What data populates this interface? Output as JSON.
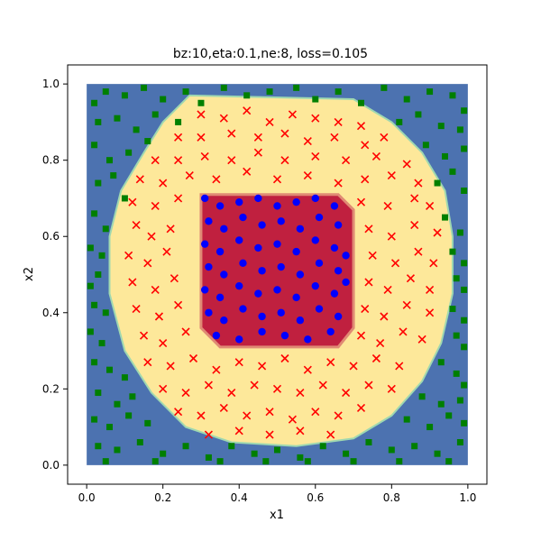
{
  "chart_data": {
    "type": "scatter",
    "title": "bz:10,eta:0.1,ne:8, loss=0.105",
    "xlabel": "x1",
    "ylabel": "x2",
    "xlim": [
      -0.05,
      1.05
    ],
    "ylim": [
      -0.05,
      1.05
    ],
    "xticks": [
      "0.0",
      "0.2",
      "0.4",
      "0.6",
      "0.8",
      "1.0"
    ],
    "yticks": [
      "0.0",
      "0.2",
      "0.4",
      "0.6",
      "0.8",
      "1.0"
    ],
    "grid": false,
    "legend": "none",
    "decision_regions": [
      {
        "class": "outer",
        "color": "#4c72b0"
      },
      {
        "class": "middle-ring",
        "color": "#fde89a"
      },
      {
        "class": "inner-square",
        "color": "#c0203f"
      }
    ],
    "series": [
      {
        "marker": "square",
        "color": "#007f00",
        "points": [
          [
            0.02,
            0.95
          ],
          [
            0.05,
            0.98
          ],
          [
            0.1,
            0.97
          ],
          [
            0.15,
            0.99
          ],
          [
            0.2,
            0.96
          ],
          [
            0.26,
            0.98
          ],
          [
            0.3,
            0.95
          ],
          [
            0.36,
            0.99
          ],
          [
            0.42,
            0.97
          ],
          [
            0.48,
            0.98
          ],
          [
            0.55,
            0.99
          ],
          [
            0.6,
            0.96
          ],
          [
            0.66,
            0.98
          ],
          [
            0.72,
            0.95
          ],
          [
            0.78,
            0.99
          ],
          [
            0.84,
            0.96
          ],
          [
            0.9,
            0.98
          ],
          [
            0.96,
            0.97
          ],
          [
            0.99,
            0.93
          ],
          [
            0.03,
            0.9
          ],
          [
            0.08,
            0.91
          ],
          [
            0.13,
            0.88
          ],
          [
            0.18,
            0.92
          ],
          [
            0.24,
            0.9
          ],
          [
            0.82,
            0.9
          ],
          [
            0.87,
            0.92
          ],
          [
            0.93,
            0.89
          ],
          [
            0.98,
            0.88
          ],
          [
            0.02,
            0.84
          ],
          [
            0.06,
            0.8
          ],
          [
            0.11,
            0.82
          ],
          [
            0.16,
            0.85
          ],
          [
            0.89,
            0.84
          ],
          [
            0.94,
            0.81
          ],
          [
            0.99,
            0.83
          ],
          [
            0.03,
            0.74
          ],
          [
            0.07,
            0.76
          ],
          [
            0.1,
            0.7
          ],
          [
            0.92,
            0.74
          ],
          [
            0.96,
            0.77
          ],
          [
            0.99,
            0.72
          ],
          [
            0.02,
            0.66
          ],
          [
            0.05,
            0.62
          ],
          [
            0.94,
            0.65
          ],
          [
            0.98,
            0.61
          ],
          [
            0.01,
            0.57
          ],
          [
            0.04,
            0.55
          ],
          [
            0.96,
            0.56
          ],
          [
            0.99,
            0.53
          ],
          [
            0.03,
            0.5
          ],
          [
            0.01,
            0.47
          ],
          [
            0.97,
            0.49
          ],
          [
            0.99,
            0.46
          ],
          [
            0.02,
            0.42
          ],
          [
            0.05,
            0.4
          ],
          [
            0.96,
            0.41
          ],
          [
            0.99,
            0.38
          ],
          [
            0.01,
            0.35
          ],
          [
            0.04,
            0.32
          ],
          [
            0.97,
            0.34
          ],
          [
            0.99,
            0.31
          ],
          [
            0.02,
            0.27
          ],
          [
            0.06,
            0.25
          ],
          [
            0.1,
            0.23
          ],
          [
            0.93,
            0.27
          ],
          [
            0.97,
            0.24
          ],
          [
            0.99,
            0.21
          ],
          [
            0.03,
            0.19
          ],
          [
            0.08,
            0.16
          ],
          [
            0.12,
            0.18
          ],
          [
            0.88,
            0.18
          ],
          [
            0.93,
            0.16
          ],
          [
            0.98,
            0.17
          ],
          [
            0.02,
            0.12
          ],
          [
            0.06,
            0.1
          ],
          [
            0.11,
            0.13
          ],
          [
            0.16,
            0.11
          ],
          [
            0.84,
            0.12
          ],
          [
            0.9,
            0.1
          ],
          [
            0.95,
            0.13
          ],
          [
            0.99,
            0.11
          ],
          [
            0.03,
            0.05
          ],
          [
            0.08,
            0.04
          ],
          [
            0.14,
            0.06
          ],
          [
            0.2,
            0.03
          ],
          [
            0.26,
            0.05
          ],
          [
            0.32,
            0.02
          ],
          [
            0.38,
            0.05
          ],
          [
            0.44,
            0.03
          ],
          [
            0.5,
            0.04
          ],
          [
            0.56,
            0.02
          ],
          [
            0.62,
            0.05
          ],
          [
            0.68,
            0.03
          ],
          [
            0.74,
            0.06
          ],
          [
            0.8,
            0.04
          ],
          [
            0.86,
            0.05
          ],
          [
            0.92,
            0.03
          ],
          [
            0.98,
            0.06
          ],
          [
            0.05,
            0.01
          ],
          [
            0.18,
            0.01
          ],
          [
            0.35,
            0.01
          ],
          [
            0.47,
            0.01
          ],
          [
            0.58,
            0.01
          ],
          [
            0.7,
            0.01
          ],
          [
            0.82,
            0.01
          ],
          [
            0.95,
            0.01
          ]
        ]
      },
      {
        "marker": "x",
        "color": "#ff0000",
        "points": [
          [
            0.3,
            0.92
          ],
          [
            0.36,
            0.91
          ],
          [
            0.42,
            0.93
          ],
          [
            0.48,
            0.9
          ],
          [
            0.54,
            0.92
          ],
          [
            0.6,
            0.91
          ],
          [
            0.66,
            0.9
          ],
          [
            0.72,
            0.89
          ],
          [
            0.24,
            0.86
          ],
          [
            0.3,
            0.86
          ],
          [
            0.38,
            0.87
          ],
          [
            0.45,
            0.86
          ],
          [
            0.52,
            0.87
          ],
          [
            0.58,
            0.85
          ],
          [
            0.65,
            0.86
          ],
          [
            0.73,
            0.84
          ],
          [
            0.78,
            0.86
          ],
          [
            0.18,
            0.8
          ],
          [
            0.24,
            0.8
          ],
          [
            0.31,
            0.81
          ],
          [
            0.38,
            0.8
          ],
          [
            0.45,
            0.82
          ],
          [
            0.52,
            0.8
          ],
          [
            0.6,
            0.81
          ],
          [
            0.68,
            0.8
          ],
          [
            0.76,
            0.81
          ],
          [
            0.84,
            0.79
          ],
          [
            0.14,
            0.75
          ],
          [
            0.2,
            0.74
          ],
          [
            0.27,
            0.76
          ],
          [
            0.34,
            0.75
          ],
          [
            0.42,
            0.77
          ],
          [
            0.5,
            0.75
          ],
          [
            0.58,
            0.76
          ],
          [
            0.66,
            0.74
          ],
          [
            0.73,
            0.75
          ],
          [
            0.8,
            0.76
          ],
          [
            0.87,
            0.74
          ],
          [
            0.12,
            0.69
          ],
          [
            0.18,
            0.68
          ],
          [
            0.24,
            0.7
          ],
          [
            0.72,
            0.69
          ],
          [
            0.79,
            0.68
          ],
          [
            0.86,
            0.7
          ],
          [
            0.9,
            0.68
          ],
          [
            0.13,
            0.63
          ],
          [
            0.17,
            0.6
          ],
          [
            0.22,
            0.62
          ],
          [
            0.74,
            0.62
          ],
          [
            0.8,
            0.6
          ],
          [
            0.86,
            0.63
          ],
          [
            0.92,
            0.61
          ],
          [
            0.11,
            0.55
          ],
          [
            0.16,
            0.53
          ],
          [
            0.21,
            0.56
          ],
          [
            0.75,
            0.55
          ],
          [
            0.81,
            0.53
          ],
          [
            0.87,
            0.56
          ],
          [
            0.91,
            0.53
          ],
          [
            0.12,
            0.48
          ],
          [
            0.18,
            0.46
          ],
          [
            0.23,
            0.49
          ],
          [
            0.74,
            0.48
          ],
          [
            0.79,
            0.46
          ],
          [
            0.85,
            0.49
          ],
          [
            0.9,
            0.46
          ],
          [
            0.13,
            0.41
          ],
          [
            0.19,
            0.39
          ],
          [
            0.24,
            0.42
          ],
          [
            0.73,
            0.41
          ],
          [
            0.78,
            0.39
          ],
          [
            0.84,
            0.42
          ],
          [
            0.9,
            0.4
          ],
          [
            0.15,
            0.34
          ],
          [
            0.2,
            0.32
          ],
          [
            0.26,
            0.35
          ],
          [
            0.72,
            0.34
          ],
          [
            0.77,
            0.32
          ],
          [
            0.83,
            0.35
          ],
          [
            0.88,
            0.33
          ],
          [
            0.16,
            0.27
          ],
          [
            0.22,
            0.26
          ],
          [
            0.28,
            0.28
          ],
          [
            0.34,
            0.25
          ],
          [
            0.4,
            0.27
          ],
          [
            0.46,
            0.26
          ],
          [
            0.52,
            0.28
          ],
          [
            0.58,
            0.25
          ],
          [
            0.64,
            0.27
          ],
          [
            0.7,
            0.26
          ],
          [
            0.76,
            0.28
          ],
          [
            0.82,
            0.26
          ],
          [
            0.2,
            0.2
          ],
          [
            0.26,
            0.19
          ],
          [
            0.32,
            0.21
          ],
          [
            0.38,
            0.19
          ],
          [
            0.44,
            0.21
          ],
          [
            0.5,
            0.2
          ],
          [
            0.56,
            0.19
          ],
          [
            0.62,
            0.21
          ],
          [
            0.68,
            0.19
          ],
          [
            0.74,
            0.21
          ],
          [
            0.8,
            0.2
          ],
          [
            0.24,
            0.14
          ],
          [
            0.3,
            0.13
          ],
          [
            0.36,
            0.15
          ],
          [
            0.42,
            0.13
          ],
          [
            0.48,
            0.14
          ],
          [
            0.54,
            0.12
          ],
          [
            0.6,
            0.14
          ],
          [
            0.66,
            0.13
          ],
          [
            0.72,
            0.15
          ],
          [
            0.32,
            0.08
          ],
          [
            0.4,
            0.09
          ],
          [
            0.48,
            0.08
          ],
          [
            0.56,
            0.09
          ],
          [
            0.64,
            0.08
          ]
        ]
      },
      {
        "marker": "circle",
        "color": "#0000ff",
        "points": [
          [
            0.31,
            0.7
          ],
          [
            0.35,
            0.68
          ],
          [
            0.4,
            0.69
          ],
          [
            0.45,
            0.7
          ],
          [
            0.5,
            0.68
          ],
          [
            0.55,
            0.69
          ],
          [
            0.6,
            0.7
          ],
          [
            0.65,
            0.68
          ],
          [
            0.32,
            0.64
          ],
          [
            0.36,
            0.62
          ],
          [
            0.41,
            0.65
          ],
          [
            0.46,
            0.63
          ],
          [
            0.51,
            0.64
          ],
          [
            0.56,
            0.62
          ],
          [
            0.61,
            0.65
          ],
          [
            0.66,
            0.63
          ],
          [
            0.31,
            0.58
          ],
          [
            0.35,
            0.56
          ],
          [
            0.4,
            0.59
          ],
          [
            0.45,
            0.57
          ],
          [
            0.5,
            0.58
          ],
          [
            0.55,
            0.56
          ],
          [
            0.6,
            0.59
          ],
          [
            0.65,
            0.57
          ],
          [
            0.68,
            0.55
          ],
          [
            0.32,
            0.52
          ],
          [
            0.36,
            0.5
          ],
          [
            0.41,
            0.53
          ],
          [
            0.46,
            0.51
          ],
          [
            0.51,
            0.52
          ],
          [
            0.56,
            0.5
          ],
          [
            0.61,
            0.53
          ],
          [
            0.66,
            0.51
          ],
          [
            0.31,
            0.46
          ],
          [
            0.35,
            0.44
          ],
          [
            0.4,
            0.47
          ],
          [
            0.45,
            0.45
          ],
          [
            0.5,
            0.46
          ],
          [
            0.55,
            0.44
          ],
          [
            0.6,
            0.47
          ],
          [
            0.65,
            0.45
          ],
          [
            0.68,
            0.48
          ],
          [
            0.32,
            0.4
          ],
          [
            0.36,
            0.38
          ],
          [
            0.41,
            0.41
          ],
          [
            0.46,
            0.39
          ],
          [
            0.51,
            0.4
          ],
          [
            0.56,
            0.38
          ],
          [
            0.61,
            0.41
          ],
          [
            0.66,
            0.39
          ],
          [
            0.34,
            0.34
          ],
          [
            0.4,
            0.33
          ],
          [
            0.46,
            0.35
          ],
          [
            0.52,
            0.34
          ],
          [
            0.58,
            0.33
          ],
          [
            0.64,
            0.35
          ]
        ]
      }
    ]
  }
}
